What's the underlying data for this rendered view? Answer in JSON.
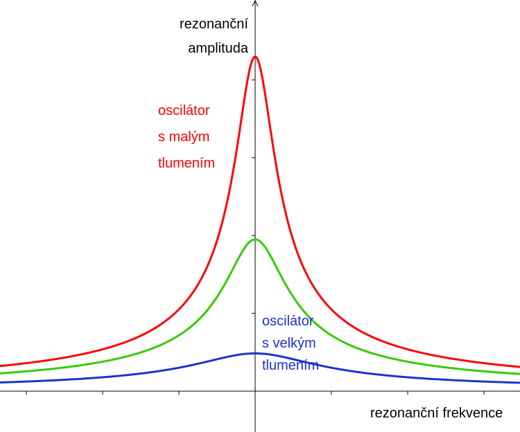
{
  "chart_data": {
    "type": "line",
    "title": "",
    "xlabel": "rezonanční frekvence",
    "ylabel": [
      "rezonanční",
      "amplituda"
    ],
    "xlim": [
      -6.7,
      7.0
    ],
    "ylim": [
      -1.08,
      10.05
    ],
    "grid": false,
    "series": [
      {
        "color": "#ff0000",
        "peak": 8.6,
        "x": [
          -6.5,
          -5,
          -4,
          -3,
          -2,
          -1.5,
          -1,
          -0.75,
          -0.5,
          -0.25,
          0,
          0.25,
          0.5,
          0.75,
          1,
          1.5,
          2,
          3,
          4,
          5,
          6.5
        ],
        "y": [
          0.76,
          0.98,
          1.21,
          1.58,
          2.27,
          2.86,
          3.87,
          4.69,
          5.84,
          7.43,
          8.6,
          7.43,
          5.84,
          4.69,
          3.87,
          2.86,
          2.27,
          1.58,
          1.21,
          0.98,
          0.76
        ]
      },
      {
        "color": "#33cc00",
        "peak": 3.9,
        "x": [
          -6.5,
          -5,
          -4,
          -3,
          -2,
          -1.5,
          -1,
          -0.75,
          -0.5,
          -0.25,
          0,
          0.25,
          0.5,
          0.75,
          1,
          1.5,
          2,
          3,
          4,
          5,
          6.5
        ],
        "y": [
          0.53,
          0.69,
          0.84,
          1.1,
          1.55,
          1.9,
          2.42,
          2.8,
          3.25,
          3.7,
          3.9,
          3.7,
          3.25,
          2.8,
          2.42,
          1.9,
          1.55,
          1.1,
          0.84,
          0.69,
          0.53
        ]
      },
      {
        "color": "#1a33cc",
        "peak": 0.97,
        "x": [
          -6.5,
          -5,
          -4,
          -3,
          -2,
          -1.5,
          -1,
          -0.75,
          -0.5,
          -0.25,
          0,
          0.25,
          0.5,
          0.75,
          1,
          1.5,
          2,
          3,
          4,
          5,
          6.5
        ],
        "y": [
          0.29,
          0.35,
          0.42,
          0.51,
          0.65,
          0.73,
          0.82,
          0.88,
          0.93,
          0.96,
          0.97,
          0.96,
          0.93,
          0.88,
          0.82,
          0.73,
          0.65,
          0.51,
          0.42,
          0.35,
          0.29
        ]
      }
    ],
    "annotations": [
      {
        "color": "#ff0000",
        "lines": [
          "oscilátor",
          "s malým",
          "tlumením"
        ]
      },
      {
        "color": "#1a33cc",
        "lines": [
          "oscilátor",
          "s velkým",
          "tlumením"
        ]
      }
    ]
  }
}
